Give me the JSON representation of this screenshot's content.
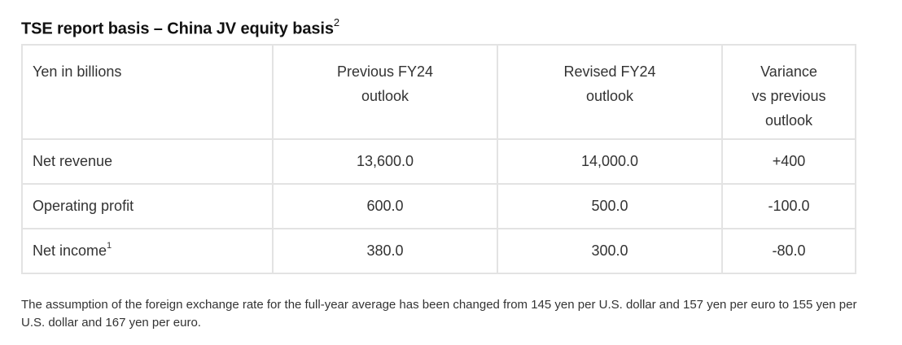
{
  "title": {
    "text": "TSE report basis – China JV equity basis",
    "sup": "2"
  },
  "table": {
    "header": {
      "col0": "Yen in billions",
      "col1_line1": "Previous FY24",
      "col1_line2": "outlook",
      "col2_line1": "Revised FY24",
      "col2_line2": "outlook",
      "col3_line1": "Variance",
      "col3_line2": "vs previous",
      "col3_line3": "outlook"
    },
    "rows": [
      {
        "label": "Net revenue",
        "sup": "",
        "previous": "13,600.0",
        "revised": "14,000.0",
        "variance": "+400"
      },
      {
        "label": "Operating profit",
        "sup": "",
        "previous": "600.0",
        "revised": "500.0",
        "variance": "-100.0"
      },
      {
        "label": "Net income",
        "sup": "1",
        "previous": "380.0",
        "revised": "300.0",
        "variance": "-80.0"
      }
    ]
  },
  "note": "The assumption of the foreign exchange rate for the full-year average has been changed from 145 yen per U.S. dollar and 157 yen per euro to 155 yen per U.S. dollar and 167 yen per euro."
}
